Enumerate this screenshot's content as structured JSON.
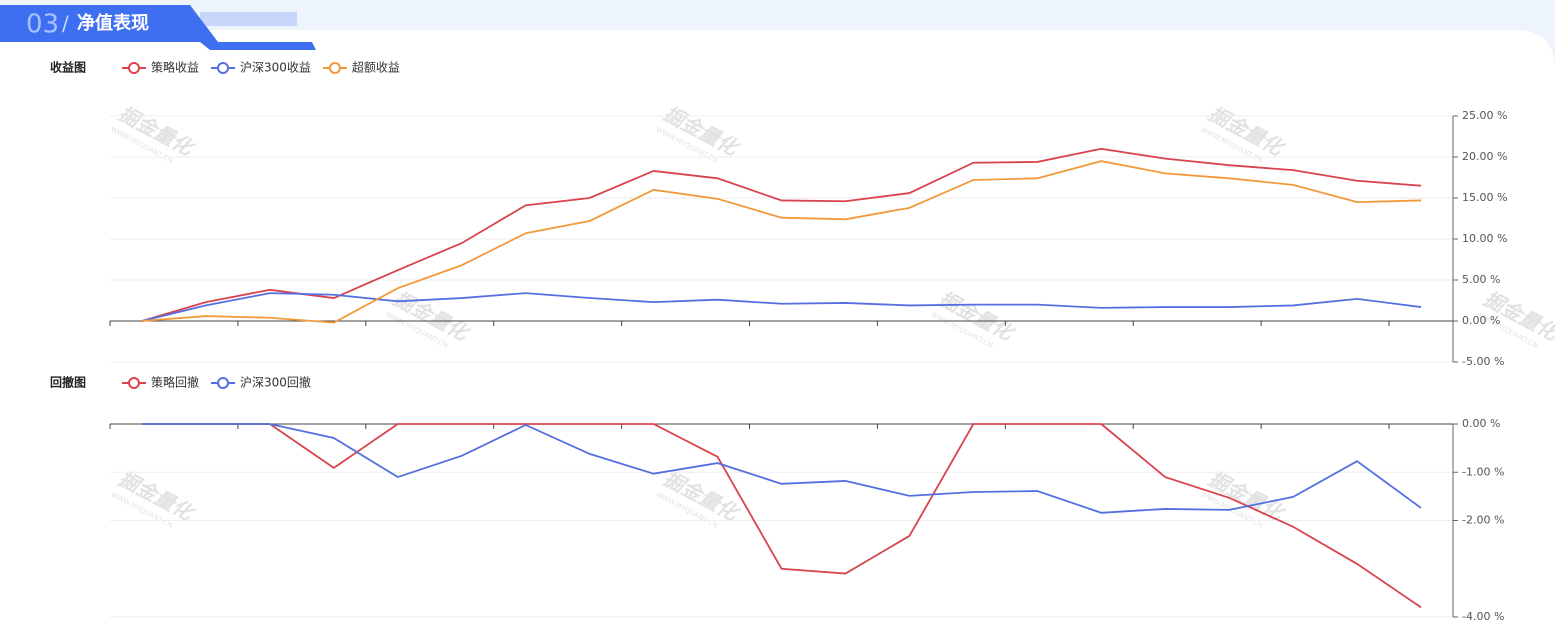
{
  "header": {
    "number": "03",
    "separator": "/",
    "title": "净值表现"
  },
  "watermark": {
    "text": "掘金量化",
    "url": "WWW.MYQUANT.CN"
  },
  "chart_data": [
    {
      "type": "line",
      "title": "收益图",
      "categories": [
        null,
        null,
        null,
        null,
        null,
        null,
        null,
        null,
        null,
        null,
        null,
        null,
        null,
        null,
        null,
        null,
        null,
        null,
        null,
        null,
        null
      ],
      "series": [
        {
          "name": "策略收益",
          "color": "#d9434e",
          "values": [
            0,
            2.3,
            3.8,
            2.8,
            6.2,
            9.5,
            14.1,
            15.0,
            18.3,
            17.4,
            14.7,
            14.6,
            15.6,
            19.3,
            19.4,
            21.0,
            19.8,
            19.0,
            18.4,
            17.1,
            16.5
          ]
        },
        {
          "name": "沪深300收益",
          "color": "#5470e0",
          "values": [
            0,
            1.9,
            3.4,
            3.2,
            2.4,
            2.8,
            3.4,
            2.8,
            2.3,
            2.6,
            2.1,
            2.2,
            1.9,
            2.0,
            2.0,
            1.6,
            1.7,
            1.7,
            1.9,
            2.7,
            1.7
          ]
        },
        {
          "name": "超额收益",
          "color": "#f19a3b",
          "values": [
            0,
            0.6,
            0.4,
            -0.2,
            4.0,
            6.8,
            10.7,
            12.2,
            16.0,
            14.9,
            12.6,
            12.4,
            13.8,
            17.2,
            17.4,
            19.5,
            18.0,
            17.4,
            16.6,
            14.5,
            14.7
          ]
        }
      ],
      "ylim": [
        -5,
        25
      ],
      "yticks": [
        {
          "value": -5,
          "label": "-5.00 %"
        },
        {
          "value": 0,
          "label": "0.00 %"
        },
        {
          "value": 5,
          "label": "5.00 %"
        },
        {
          "value": 10,
          "label": "10.00 %"
        },
        {
          "value": 15,
          "label": "15.00 %"
        },
        {
          "value": 20,
          "label": "20.00 %"
        },
        {
          "value": 25,
          "label": "25.00 %"
        }
      ],
      "grid": true
    },
    {
      "type": "line",
      "title": "回撤图",
      "categories": [
        null,
        null,
        null,
        null,
        null,
        null,
        null,
        null,
        null,
        null,
        null,
        null,
        null,
        null,
        null,
        null,
        null,
        null,
        null,
        null,
        null
      ],
      "series": [
        {
          "name": "策略回撤",
          "color": "#d9434e",
          "values": [
            0,
            0,
            0,
            -0.91,
            0,
            0,
            0,
            0,
            0,
            -0.68,
            -3.0,
            -3.1,
            -2.32,
            0,
            0,
            0,
            -1.1,
            -1.53,
            -2.13,
            -2.9,
            -3.8
          ]
        },
        {
          "name": "沪深300回撤",
          "color": "#5470e0",
          "values": [
            0,
            0,
            0,
            -0.29,
            -1.1,
            -0.66,
            -0.02,
            -0.62,
            -1.03,
            -0.81,
            -1.24,
            -1.18,
            -1.49,
            -1.41,
            -1.39,
            -1.84,
            -1.76,
            -1.78,
            -1.51,
            -0.77,
            -1.74
          ]
        }
      ],
      "ylim": [
        -4,
        0
      ],
      "yticks": [
        {
          "value": -4,
          "label": "-4.00 %"
        },
        {
          "value": -2,
          "label": "-2.00 %"
        },
        {
          "value": -1,
          "label": "-1.00 %"
        },
        {
          "value": 0,
          "label": "0.00 %"
        }
      ],
      "grid": true
    }
  ]
}
